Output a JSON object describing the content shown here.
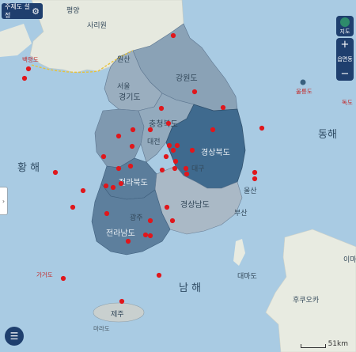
{
  "controls": {
    "theme_settings_label": "주제도 설정",
    "map_type_label": "지도",
    "zoom_in": "+",
    "zoom_level": "읍면동",
    "zoom_out": "−",
    "side_toggle": "›",
    "legend_icon": "list-icon",
    "scale_label": "51km"
  },
  "map": {
    "sea_labels": {
      "west": "황 해",
      "east": "동해",
      "south": "남 해"
    },
    "place_labels": [
      "평양",
      "사리원",
      "원산",
      "강원도",
      "경기도",
      "충청북도",
      "경상북도",
      "전라북도",
      "전라남도",
      "경상남도",
      "울산",
      "부산",
      "제주",
      "서울",
      "대전",
      "대구",
      "광주"
    ],
    "island_labels": [
      "백령도",
      "울릉도",
      "독도",
      "가거도",
      "마라도",
      "대마도",
      "후쿠오카",
      "이마"
    ],
    "colors": {
      "sea": "#a9cbe3",
      "land_north": "#e7eadf",
      "province_low": "#93a9bb",
      "province_mid": "#6f8ea8",
      "province_high": "#3d6688",
      "marker": "#e0171c"
    },
    "marker_count": 44
  }
}
